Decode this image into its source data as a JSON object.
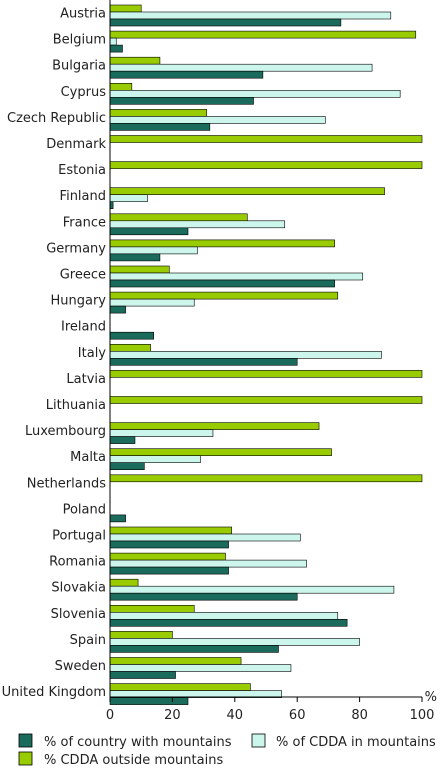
{
  "chart_data": {
    "type": "bar",
    "orientation": "horizontal",
    "categories": [
      "Austria",
      "Belgium",
      "Bulgaria",
      "Cyprus",
      "Czech Republic",
      "Denmark",
      "Estonia",
      "Finland",
      "France",
      "Germany",
      "Greece",
      "Hungary",
      "Ireland",
      "Italy",
      "Latvia",
      "Lithuania",
      "Luxembourg",
      "Malta",
      "Netherlands",
      "Poland",
      "Portugal",
      "Romania",
      "Slovakia",
      "Slovenia",
      "Spain",
      "Sweden",
      "United Kingdom"
    ],
    "series": [
      {
        "name": "% CDDA outside mountains",
        "color": "#99cc00",
        "values": [
          10,
          98,
          16,
          7,
          31,
          100,
          100,
          88,
          44,
          72,
          19,
          73,
          0,
          13,
          100,
          100,
          67,
          71,
          100,
          0,
          39,
          37,
          9,
          27,
          20,
          42,
          45
        ]
      },
      {
        "name": "% of CDDA in mountains",
        "color": "#ccf5ec",
        "values": [
          90,
          2,
          84,
          93,
          69,
          0,
          0,
          12,
          56,
          28,
          81,
          27,
          0,
          87,
          0,
          0,
          33,
          29,
          0,
          0,
          61,
          63,
          91,
          73,
          80,
          58,
          55
        ]
      },
      {
        "name": "% of country with mountains",
        "color": "#1a6b5c",
        "values": [
          74,
          4,
          49,
          46,
          32,
          0,
          0,
          1,
          25,
          16,
          72,
          5,
          14,
          60,
          0,
          0,
          8,
          11,
          0,
          5,
          38,
          38,
          60,
          76,
          54,
          21,
          25
        ]
      }
    ],
    "xlim": [
      0,
      100
    ],
    "xticks": [
      "0",
      "20",
      "40",
      "60",
      "80",
      "100"
    ],
    "unit": "%",
    "legend_placement": "bottom"
  },
  "legend": [
    {
      "label": "% of country with mountains",
      "color": "#1a6b5c"
    },
    {
      "label": "% of CDDA in mountains",
      "color": "#ccf5ec"
    },
    {
      "label": "% CDDA outside mountains",
      "color": "#99cc00"
    }
  ]
}
